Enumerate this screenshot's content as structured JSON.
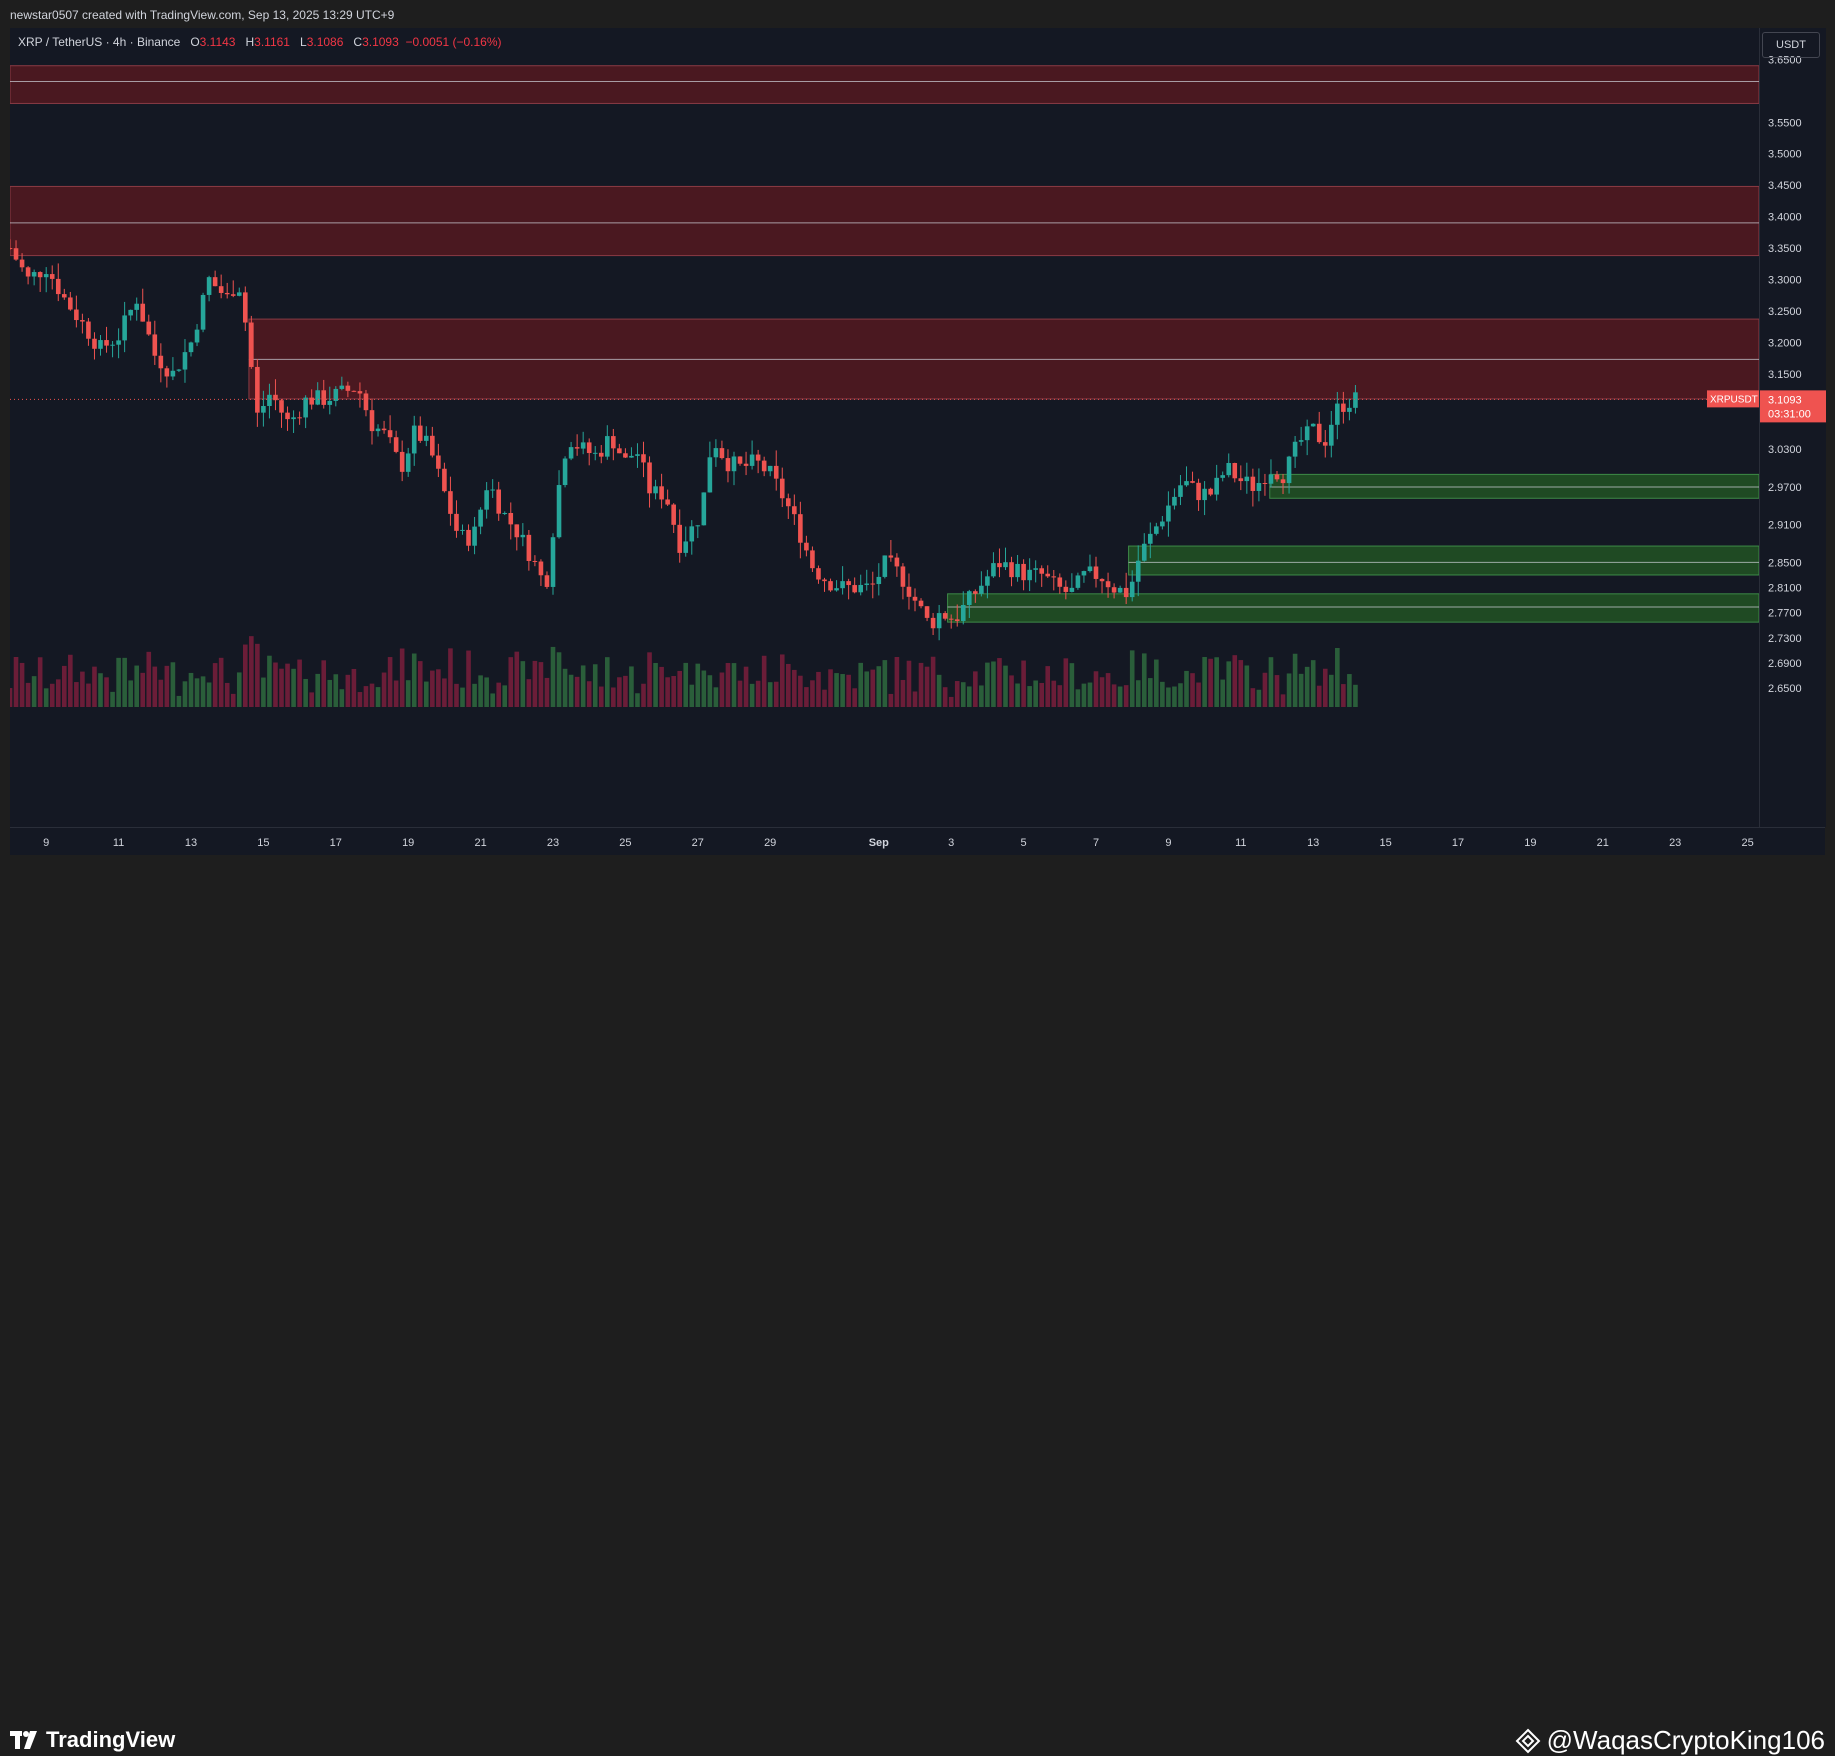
{
  "header": {
    "credit": "newstar0507 created with TradingView.com, Sep 13, 2025 13:29 UTC+9"
  },
  "legend": {
    "symbol": "XRP / TetherUS · 4h · Binance",
    "o_label": "O",
    "o_value": "3.1143",
    "h_label": "H",
    "h_value": "3.1161",
    "l_label": "L",
    "l_value": "3.1086",
    "c_label": "C",
    "c_value": "3.1093",
    "change": "−0.0051 (−0.16%)"
  },
  "unit": "USDT",
  "price_badge": {
    "ticker": "XRPUSDT",
    "price": "3.1093",
    "countdown": "03:31:00"
  },
  "footer": {
    "brand": "TradingView",
    "watermark": "@WaqasCryptoKing106"
  },
  "colors": {
    "up": "#26a69a",
    "down": "#ef5350",
    "background": "#141823",
    "resistance_zone": "#4a1820",
    "support_zone": "#1f4a23"
  },
  "chart_data": {
    "type": "candlestick",
    "title": "XRP / TetherUS · 4h · Binance",
    "ylim": [
      2.62,
      3.7
    ],
    "y_ticks": [
      "3.6500",
      "3.5500",
      "3.5000",
      "3.4500",
      "3.4000",
      "3.3500",
      "3.3000",
      "3.2500",
      "3.2000",
      "3.1500",
      "3.0300",
      "2.9700",
      "2.9100",
      "2.8500",
      "2.8100",
      "2.7700",
      "2.7300",
      "2.6900",
      "2.6500"
    ],
    "x_ticks": [
      "9",
      "11",
      "13",
      "15",
      "17",
      "19",
      "21",
      "23",
      "25",
      "27",
      "29",
      "Sep",
      "3",
      "5",
      "7",
      "9",
      "11",
      "13",
      "15",
      "17",
      "19",
      "21",
      "23",
      "25"
    ],
    "current_price": 3.1093,
    "zones": [
      {
        "kind": "resistance",
        "top": 3.64,
        "mid": 3.615,
        "bottom": 3.58,
        "start_day": 8.0
      },
      {
        "kind": "resistance",
        "top": 3.448,
        "mid": 3.39,
        "bottom": 3.338,
        "start_day": 8.0
      },
      {
        "kind": "resistance",
        "top": 3.237,
        "mid": 3.173,
        "bottom": 3.11,
        "start_day": 14.6
      },
      {
        "kind": "support",
        "top": 2.99,
        "mid": 2.97,
        "bottom": 2.952,
        "start_day": 42.8
      },
      {
        "kind": "support",
        "top": 2.876,
        "mid": 2.85,
        "bottom": 2.83,
        "start_day": 38.9
      },
      {
        "kind": "support",
        "top": 2.8,
        "mid": 2.779,
        "bottom": 2.755,
        "start_day": 33.9
      }
    ],
    "price_path": [
      [
        8.0,
        3.35
      ],
      [
        8.5,
        3.3
      ],
      [
        9.0,
        3.32
      ],
      [
        9.5,
        3.27
      ],
      [
        10.0,
        3.23
      ],
      [
        10.5,
        3.19
      ],
      [
        11.0,
        3.21
      ],
      [
        11.5,
        3.27
      ],
      [
        12.0,
        3.18
      ],
      [
        12.5,
        3.15
      ],
      [
        13.0,
        3.2
      ],
      [
        13.5,
        3.3
      ],
      [
        14.0,
        3.27
      ],
      [
        14.3,
        3.3
      ],
      [
        14.6,
        3.2
      ],
      [
        14.8,
        3.08
      ],
      [
        15.2,
        3.12
      ],
      [
        15.7,
        3.07
      ],
      [
        16.2,
        3.11
      ],
      [
        16.7,
        3.11
      ],
      [
        17.2,
        3.12
      ],
      [
        17.6,
        3.13
      ],
      [
        18.0,
        3.07
      ],
      [
        18.4,
        3.05
      ],
      [
        18.8,
        3.0
      ],
      [
        19.2,
        3.06
      ],
      [
        19.6,
        3.03
      ],
      [
        20.0,
        2.96
      ],
      [
        20.4,
        2.89
      ],
      [
        20.8,
        2.89
      ],
      [
        21.2,
        2.98
      ],
      [
        21.6,
        2.93
      ],
      [
        22.0,
        2.9
      ],
      [
        22.4,
        2.86
      ],
      [
        22.8,
        2.81
      ],
      [
        23.1,
        2.95
      ],
      [
        23.4,
        3.05
      ],
      [
        23.8,
        3.03
      ],
      [
        24.2,
        3.02
      ],
      [
        24.6,
        3.05
      ],
      [
        25.0,
        3.01
      ],
      [
        25.3,
        3.03
      ],
      [
        25.7,
        2.96
      ],
      [
        26.1,
        2.96
      ],
      [
        26.5,
        2.88
      ],
      [
        26.8,
        2.9
      ],
      [
        27.1,
        2.93
      ],
      [
        27.4,
        3.05
      ],
      [
        27.8,
        3.01
      ],
      [
        28.2,
        3.0
      ],
      [
        28.6,
        3.01
      ],
      [
        29.0,
        2.99
      ],
      [
        29.4,
        2.95
      ],
      [
        29.8,
        2.9
      ],
      [
        30.2,
        2.84
      ],
      [
        30.6,
        2.82
      ],
      [
        31.0,
        2.81
      ],
      [
        31.4,
        2.81
      ],
      [
        31.8,
        2.81
      ],
      [
        32.2,
        2.85
      ],
      [
        32.6,
        2.83
      ],
      [
        33.0,
        2.79
      ],
      [
        33.4,
        2.75
      ],
      [
        33.7,
        2.77
      ],
      [
        34.1,
        2.76
      ],
      [
        34.5,
        2.79
      ],
      [
        34.9,
        2.82
      ],
      [
        35.3,
        2.85
      ],
      [
        35.7,
        2.84
      ],
      [
        36.1,
        2.83
      ],
      [
        36.5,
        2.83
      ],
      [
        36.9,
        2.81
      ],
      [
        37.3,
        2.8
      ],
      [
        37.7,
        2.83
      ],
      [
        38.1,
        2.83
      ],
      [
        38.5,
        2.81
      ],
      [
        38.9,
        2.8
      ],
      [
        39.2,
        2.86
      ],
      [
        39.6,
        2.9
      ],
      [
        40.0,
        2.94
      ],
      [
        40.4,
        2.98
      ],
      [
        40.8,
        2.96
      ],
      [
        41.2,
        2.96
      ],
      [
        41.6,
        3.0
      ],
      [
        42.0,
        2.98
      ],
      [
        42.4,
        2.97
      ],
      [
        42.8,
        3.0
      ],
      [
        43.2,
        2.99
      ],
      [
        43.6,
        3.04
      ],
      [
        44.0,
        3.06
      ],
      [
        44.3,
        3.04
      ],
      [
        44.6,
        3.09
      ],
      [
        44.9,
        3.105
      ],
      [
        45.2,
        3.1093
      ]
    ],
    "vol_ylim": [
      0,
      110
    ]
  }
}
